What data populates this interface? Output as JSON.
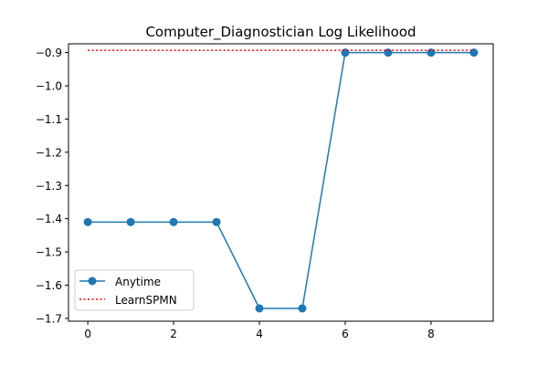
{
  "chart_data": {
    "type": "line",
    "title": "Computer_Diagnostician Log Likelihood",
    "xlabel": "",
    "ylabel": "",
    "xlim": [
      -0.45,
      9.45
    ],
    "ylim": [
      -1.7085,
      -0.8735
    ],
    "x_ticks": [
      0,
      2,
      4,
      6,
      8
    ],
    "x_tick_labels": [
      "0",
      "2",
      "4",
      "6",
      "8"
    ],
    "y_ticks": [
      -0.9,
      -1.0,
      -1.1,
      -1.2,
      -1.3,
      -1.4,
      -1.5,
      -1.6,
      -1.7
    ],
    "y_tick_labels": [
      "−0.9",
      "−1.0",
      "−1.1",
      "−1.2",
      "−1.3",
      "−1.4",
      "−1.5",
      "−1.6",
      "−1.7"
    ],
    "grid": false,
    "legend_position": "lower-left",
    "series": [
      {
        "name": "Anytime",
        "style": "solid-markers",
        "color": "#1f77b4",
        "x": [
          0,
          1,
          2,
          3,
          4,
          5,
          6,
          7,
          8,
          9
        ],
        "values": [
          -1.41,
          -1.41,
          -1.41,
          -1.41,
          -1.67,
          -1.67,
          -0.9,
          -0.9,
          -0.9,
          -0.9
        ]
      },
      {
        "name": "LearnSPMN",
        "style": "dotted",
        "color": "#ff0000",
        "x": [
          0,
          9
        ],
        "values": [
          -0.893,
          -0.893
        ]
      }
    ]
  }
}
